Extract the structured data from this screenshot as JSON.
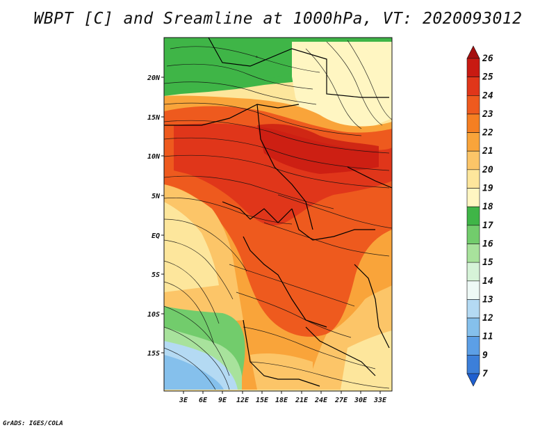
{
  "title": "WBPT [C] and Sreamline at 1000hPa, VT: 2020093012",
  "credit": "GrADS: IGES/COLA",
  "map": {
    "lat_ticks": [
      "20N",
      "15N",
      "10N",
      "5N",
      "EQ",
      "5S",
      "10S",
      "15S"
    ],
    "lon_ticks": [
      "3E",
      "6E",
      "9E",
      "12E",
      "15E",
      "18E",
      "21E",
      "24E",
      "27E",
      "30E",
      "33E"
    ]
  },
  "colorbar": {
    "labels": [
      "26",
      "25",
      "24",
      "23",
      "22",
      "21",
      "20",
      "19",
      "18",
      "17",
      "16",
      "15",
      "14",
      "13",
      "12",
      "11",
      "9",
      "7"
    ],
    "colors": [
      "#a50f0f",
      "#c81a12",
      "#e0361a",
      "#ee5a1e",
      "#f57f22",
      "#f9a43a",
      "#fcc568",
      "#fde69c",
      "#fff6c2",
      "#3fb547",
      "#72cc6c",
      "#a8e29c",
      "#d6f3d8",
      "#eef9f6",
      "#b4daf3",
      "#85c0ec",
      "#5c9fe6",
      "#3c7fd9",
      "#1f5fcf"
    ]
  }
}
